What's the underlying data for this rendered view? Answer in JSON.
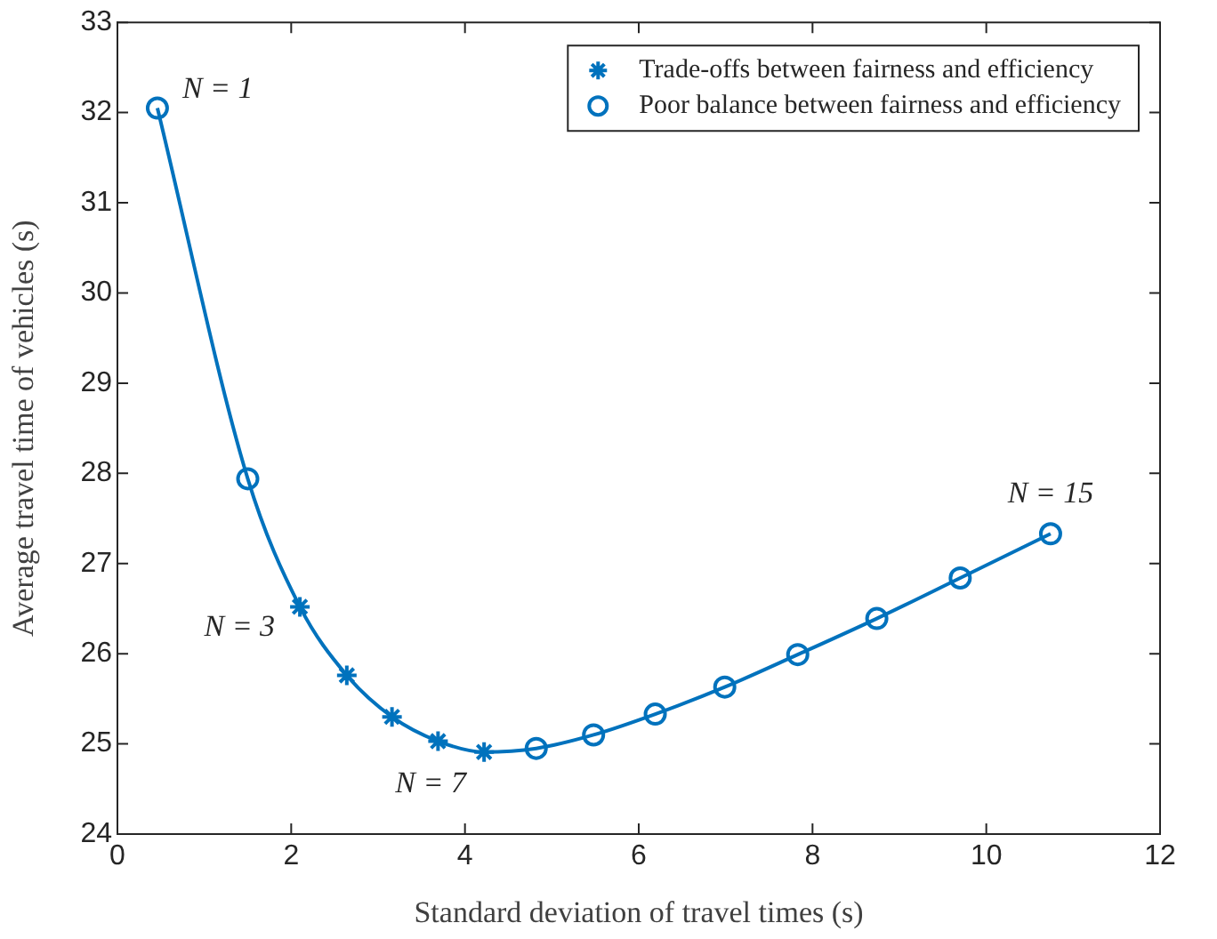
{
  "chart_data": {
    "type": "line",
    "xlabel": "Standard deviation of travel times (s)",
    "ylabel": "Average travel time of vehicles (s)",
    "xlim": [
      0,
      12
    ],
    "xticks": [
      0,
      2,
      4,
      6,
      8,
      10,
      12
    ],
    "ylim": [
      24,
      33
    ],
    "yticks": [
      24,
      25,
      26,
      27,
      28,
      29,
      30,
      31,
      32,
      33
    ],
    "grid": false,
    "legend": "top right",
    "line_style": "solid",
    "series": [
      {
        "type": "line",
        "marker": "none",
        "color": "#0072bd",
        "x": [
          0.46,
          1.5,
          2.1,
          2.64,
          3.16,
          3.69,
          4.22,
          4.82,
          5.48,
          6.19,
          6.99,
          7.83,
          8.74,
          9.7,
          10.74
        ],
        "values": [
          32.05,
          27.94,
          26.52,
          25.76,
          25.3,
          25.03,
          24.91,
          24.95,
          25.1,
          25.33,
          25.63,
          25.99,
          26.39,
          26.84,
          27.33
        ]
      },
      {
        "type": "scatter",
        "marker": "cross",
        "name": "Trade-offs between fairness and efficiency",
        "color": "#0072bd",
        "x": [
          2.1,
          2.64,
          3.16,
          3.69,
          4.22
        ],
        "values": [
          26.52,
          25.76,
          25.3,
          25.03,
          24.91
        ]
      },
      {
        "type": "scatter",
        "marker": "circle",
        "name": "Poor balance between fairness and efficiency",
        "color": "#0072bd",
        "x": [
          0.46,
          1.5,
          4.82,
          5.48,
          6.19,
          6.99,
          7.83,
          8.74,
          9.7,
          10.74
        ],
        "values": [
          32.05,
          27.94,
          24.95,
          25.1,
          25.33,
          25.63,
          25.99,
          26.39,
          26.84,
          27.33
        ]
      }
    ],
    "annotations": [
      {
        "text": "N = 1",
        "x": 0.46,
        "y": 32.05
      },
      {
        "text": "N = 3",
        "x": 2.1,
        "y": 26.52
      },
      {
        "text": "N = 7",
        "x": 4.22,
        "y": 24.91
      },
      {
        "text": "N = 15",
        "x": 10.74,
        "y": 27.33
      }
    ]
  }
}
